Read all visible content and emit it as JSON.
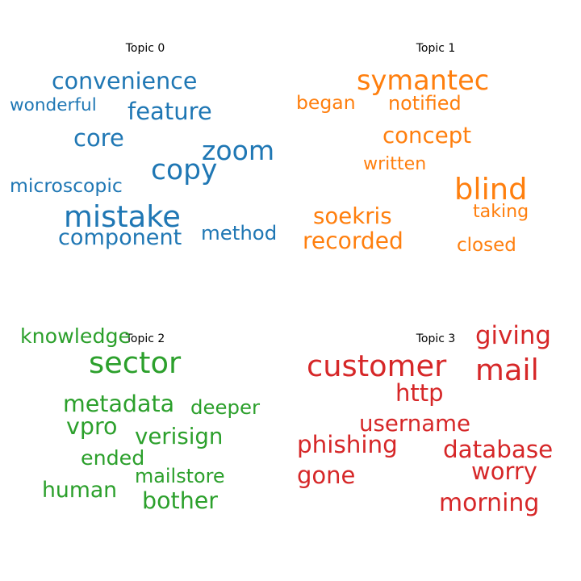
{
  "chart_data": [
    {
      "type": "wordcloud",
      "title": "Topic 0",
      "color": "#1f77b4",
      "words": [
        {
          "text": "convenience",
          "weight": 0.62
        },
        {
          "text": "wonderful",
          "weight": 0.47
        },
        {
          "text": "feature",
          "weight": 0.63
        },
        {
          "text": "core",
          "weight": 0.63
        },
        {
          "text": "zoom",
          "weight": 0.72
        },
        {
          "text": "copy",
          "weight": 0.75
        },
        {
          "text": "microscopic",
          "weight": 0.51
        },
        {
          "text": "mistake",
          "weight": 0.8
        },
        {
          "text": "component",
          "weight": 0.59
        },
        {
          "text": "method",
          "weight": 0.53
        }
      ]
    },
    {
      "type": "wordcloud",
      "title": "Topic 1",
      "color": "#ff7f0e",
      "words": [
        {
          "text": "symantec",
          "weight": 0.73
        },
        {
          "text": "began",
          "weight": 0.51
        },
        {
          "text": "notified",
          "weight": 0.52
        },
        {
          "text": "concept",
          "weight": 0.6
        },
        {
          "text": "written",
          "weight": 0.48
        },
        {
          "text": "blind",
          "weight": 0.8
        },
        {
          "text": "taking",
          "weight": 0.48
        },
        {
          "text": "soekris",
          "weight": 0.6
        },
        {
          "text": "recorded",
          "weight": 0.61
        },
        {
          "text": "closed",
          "weight": 0.5
        }
      ]
    },
    {
      "type": "wordcloud",
      "title": "Topic 2",
      "color": "#2ca02c",
      "words": [
        {
          "text": "knowledge",
          "weight": 0.55
        },
        {
          "text": "sector",
          "weight": 0.8
        },
        {
          "text": "metadata",
          "weight": 0.62
        },
        {
          "text": "deeper",
          "weight": 0.53
        },
        {
          "text": "vpro",
          "weight": 0.62
        },
        {
          "text": "verisign",
          "weight": 0.6
        },
        {
          "text": "ended",
          "weight": 0.55
        },
        {
          "text": "mailstore",
          "weight": 0.52
        },
        {
          "text": "human",
          "weight": 0.58
        },
        {
          "text": "bother",
          "weight": 0.62
        }
      ]
    },
    {
      "type": "wordcloud",
      "title": "Topic 3",
      "color": "#d62728",
      "words": [
        {
          "text": "giving",
          "weight": 0.67
        },
        {
          "text": "customer",
          "weight": 0.8
        },
        {
          "text": "mail",
          "weight": 0.8
        },
        {
          "text": "http",
          "weight": 0.63
        },
        {
          "text": "username",
          "weight": 0.6
        },
        {
          "text": "phishing",
          "weight": 0.64
        },
        {
          "text": "database",
          "weight": 0.64
        },
        {
          "text": "worry",
          "weight": 0.63
        },
        {
          "text": "gone",
          "weight": 0.63
        },
        {
          "text": "morning",
          "weight": 0.65
        }
      ]
    }
  ]
}
